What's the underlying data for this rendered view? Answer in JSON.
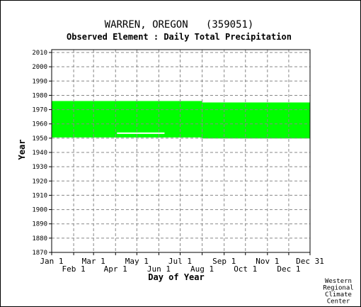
{
  "chart_data": {
    "type": "bar",
    "title": "WARREN, OREGON   (359051)",
    "subtitle": "Observed Element : Daily Total Precipitation",
    "xlabel": "Day of Year",
    "ylabel": "Year",
    "xlim": [
      1,
      365
    ],
    "ylim": [
      1870,
      2012
    ],
    "y_ticks": [
      1870,
      1880,
      1890,
      1900,
      1910,
      1920,
      1930,
      1940,
      1950,
      1960,
      1970,
      1980,
      1990,
      2000,
      2010
    ],
    "x_ticks": [
      {
        "label": "Jan 1",
        "day": 1,
        "row": "top"
      },
      {
        "label": "Feb 1",
        "day": 32,
        "row": "bottom"
      },
      {
        "label": "Mar 1",
        "day": 60,
        "row": "top"
      },
      {
        "label": "Apr 1",
        "day": 91,
        "row": "bottom"
      },
      {
        "label": "May 1",
        "day": 121,
        "row": "top"
      },
      {
        "label": "Jun 1",
        "day": 152,
        "row": "bottom"
      },
      {
        "label": "Jul 1",
        "day": 182,
        "row": "top"
      },
      {
        "label": "Aug 1",
        "day": 213,
        "row": "bottom"
      },
      {
        "label": "Sep 1",
        "day": 244,
        "row": "top"
      },
      {
        "label": "Oct 1",
        "day": 274,
        "row": "bottom"
      },
      {
        "label": "Nov 1",
        "day": 305,
        "row": "top"
      },
      {
        "label": "Dec 1",
        "day": 335,
        "row": "bottom"
      },
      {
        "label": "Dec 31",
        "day": 365,
        "row": "top"
      }
    ],
    "grid": true,
    "data_color": "#00ff00",
    "coverage": [
      {
        "day_start": 1,
        "day_end": 213,
        "year_start": 1950.5,
        "year_end": 1976
      },
      {
        "day_start": 213,
        "day_end": 365,
        "year_start": 1949.8,
        "year_end": 1975
      }
    ],
    "gaps": [
      {
        "day_start": 93,
        "day_end": 160,
        "year": 1953.5
      }
    ],
    "credit": [
      "Western",
      "Regional",
      "Climate",
      "Center"
    ]
  }
}
